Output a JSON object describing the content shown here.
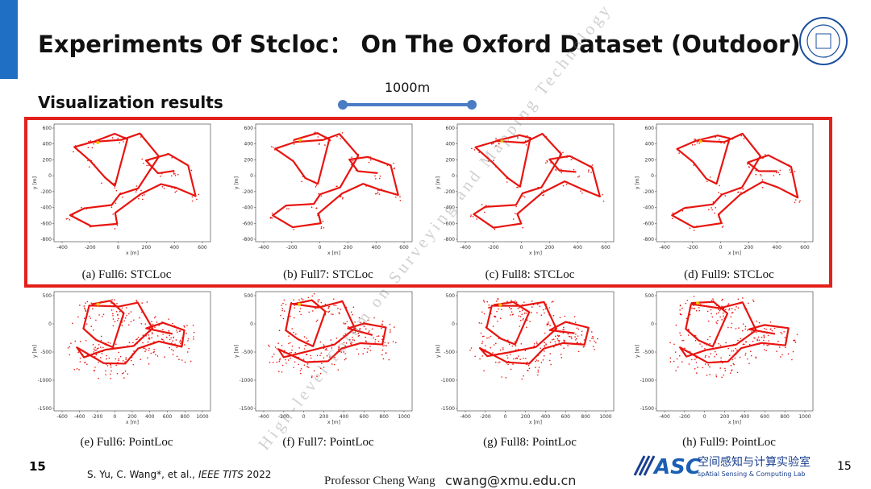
{
  "header": {
    "title": "Experiments Of Stcloc： On The Oxford Dataset (Outdoor)",
    "subtitle": "Visualization results"
  },
  "scale_bar": {
    "label": "1000m"
  },
  "panels": [
    {
      "caption": "(a) Full6: STCLoc",
      "x_label": "x [m]",
      "y_label": "y [m]",
      "xticks": [
        -400,
        -200,
        0,
        200,
        400,
        600
      ],
      "yticks": [
        600,
        400,
        200,
        0,
        -200,
        -400,
        -600,
        -800
      ]
    },
    {
      "caption": "(b) Full7: STCLoc",
      "x_label": "x [m]",
      "y_label": "y [m]",
      "xticks": [
        -400,
        -200,
        0,
        200,
        400,
        600
      ],
      "yticks": [
        600,
        400,
        200,
        0,
        -200,
        -400,
        -600,
        -800
      ]
    },
    {
      "caption": "(c) Full8: STCLoc",
      "x_label": "x [m]",
      "y_label": "y [m]",
      "xticks": [
        -400,
        -200,
        0,
        200,
        400,
        600
      ],
      "yticks": [
        600,
        400,
        200,
        0,
        -200,
        -400,
        -600,
        -800
      ]
    },
    {
      "caption": "(d) Full9: STCLoc",
      "x_label": "x [m]",
      "y_label": "y [m]",
      "xticks": [
        -400,
        -200,
        0,
        200,
        400,
        600
      ],
      "yticks": [
        600,
        400,
        200,
        0,
        -200,
        -400,
        -600,
        -800
      ]
    },
    {
      "caption": "(e) Full6: PointLoc",
      "x_label": "x [m]",
      "y_label": "y [m]",
      "xticks": [
        -600,
        -400,
        -200,
        0,
        200,
        400,
        600,
        800,
        1000
      ],
      "yticks": [
        500,
        0,
        -500,
        -1000,
        -1500
      ]
    },
    {
      "caption": "(f) Full7: PointLoc",
      "x_label": "x [m]",
      "y_label": "y [m]",
      "xticks": [
        -400,
        -200,
        0,
        200,
        400,
        600,
        800,
        1000
      ],
      "yticks": [
        500,
        0,
        -500,
        -1000,
        -1500
      ]
    },
    {
      "caption": "(g) Full8: PointLoc",
      "x_label": "x [m]",
      "y_label": "y [m]",
      "xticks": [
        -400,
        -200,
        0,
        200,
        400,
        600,
        800,
        1000
      ],
      "yticks": [
        500,
        0,
        -500,
        -1000,
        -1500
      ]
    },
    {
      "caption": "(h) Full9: PointLoc",
      "x_label": "x [m]",
      "y_label": "y [m]",
      "xticks": [
        -400,
        -200,
        0,
        200,
        400,
        600,
        800,
        1000
      ],
      "yticks": [
        500,
        0,
        -500,
        -1000,
        -1500
      ]
    }
  ],
  "watermark": "High-level Forum on Surveying and Mapping Technology",
  "footer": {
    "page_left": "15",
    "authors": "S. Yu, C. Wang*, et al.,",
    "journal": "IEEE TITS",
    "year": "2022",
    "presenter": "Professor Cheng Wang",
    "email": "cwang@xmu.edu.cn",
    "lab_abbr": "ASC",
    "lab_cn": "空间感知与计算实验室",
    "lab_en": "spAtial Sensing & Computing Lab",
    "page_right": "15"
  }
}
